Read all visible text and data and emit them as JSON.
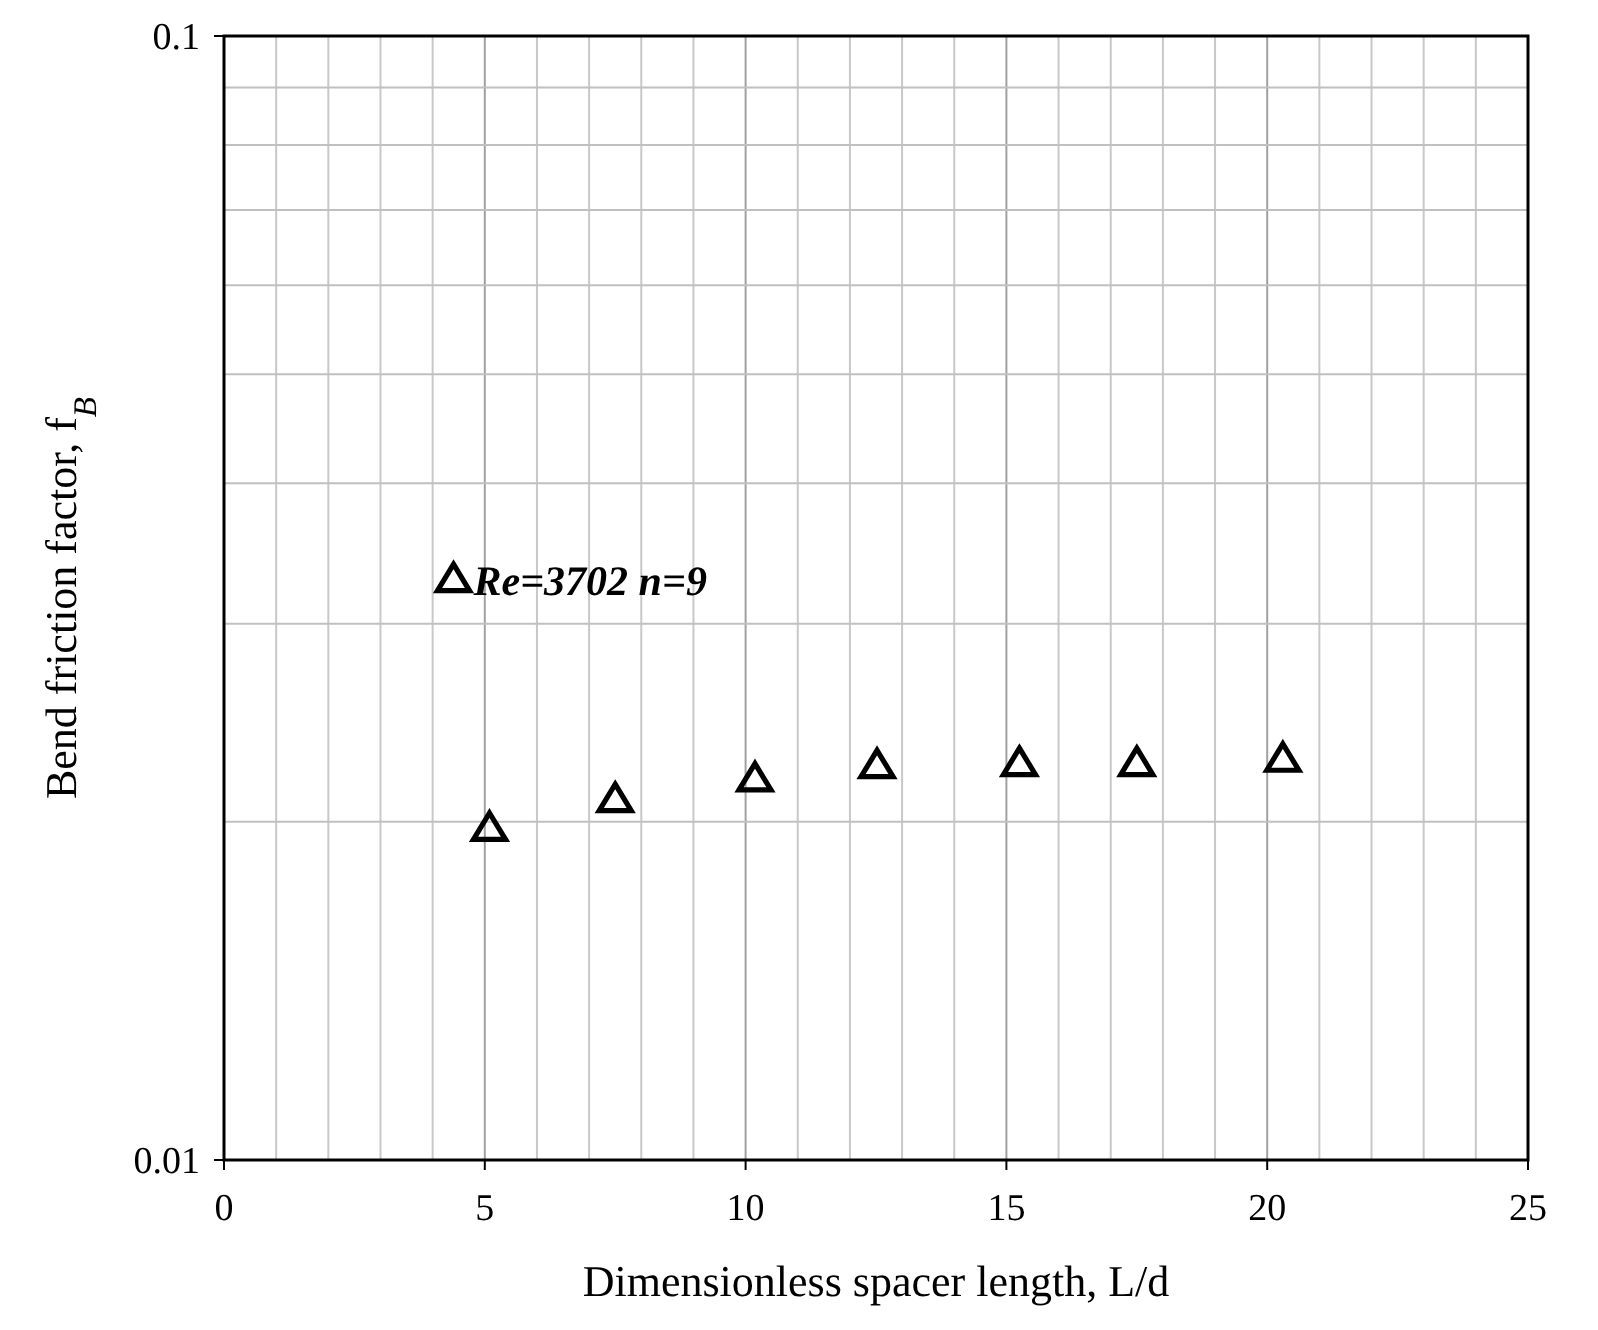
{
  "chart_data": {
    "type": "scatter",
    "xlabel": "Dimensionless spacer length, L/d",
    "ylabel": "Bend friction factor, f$_{B}$",
    "log": "y",
    "xlim": [
      0,
      25
    ],
    "ylim": [
      0.01,
      0.1
    ],
    "xticks": [
      0,
      5,
      10,
      15,
      20,
      25
    ],
    "yticks": [
      0.01,
      0.1
    ],
    "grid": true,
    "legend": "top left",
    "marker": "triangle",
    "series": [
      {
        "name": "Re=3702 n=9",
        "color": "#000000",
        "x": [
          5.09,
          7.5,
          10.18,
          12.52,
          15.25,
          17.5,
          20.3
        ],
        "values": [
          0.0197,
          0.0209,
          0.0218,
          0.0224,
          0.0225,
          0.0225,
          0.0227
        ]
      }
    ]
  }
}
